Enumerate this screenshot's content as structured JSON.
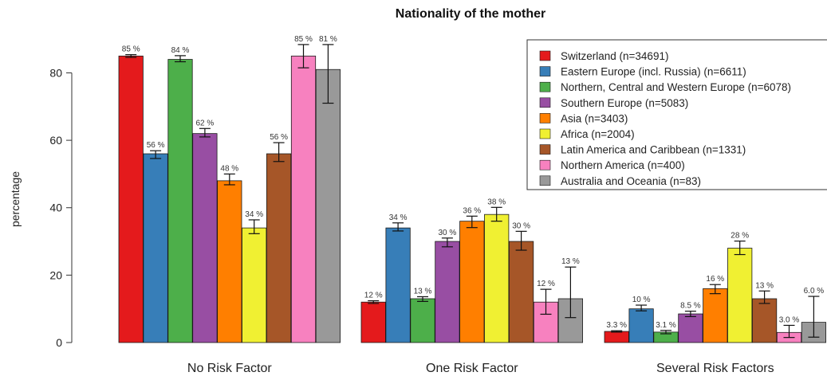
{
  "chart_data": {
    "type": "bar",
    "title": "Nationality of the mother",
    "ylabel": "percentage",
    "xlabel": "",
    "ylim": [
      0,
      95
    ],
    "yticks": [
      0,
      20,
      40,
      60,
      80
    ],
    "categories": [
      "No Risk Factor",
      "One Risk Factor",
      "Several Risk Factors"
    ],
    "legend_position": "top-right",
    "series": [
      {
        "name": "Switzerland (n=34691)",
        "color": "#e41a1c",
        "values": [
          85,
          12,
          3.3
        ],
        "labels": [
          "85 %",
          "12 %",
          "3.3 %"
        ],
        "err_low": [
          84.6,
          11.6,
          3.1
        ],
        "err_high": [
          85.4,
          12.4,
          3.5
        ]
      },
      {
        "name": "Eastern Europe (incl. Russia) (n=6611)",
        "color": "#377eb8",
        "values": [
          56,
          34,
          10
        ],
        "labels": [
          "56 %",
          "34 %",
          "10 %"
        ],
        "err_low": [
          54.6,
          33.1,
          9.4
        ],
        "err_high": [
          56.9,
          35.5,
          11.1
        ]
      },
      {
        "name": "Northern, Central and Western Europe (n=6078)",
        "color": "#4daf4a",
        "values": [
          84,
          13,
          3.1
        ],
        "labels": [
          "84 %",
          "13 %",
          "3.1 %"
        ],
        "err_low": [
          83.3,
          12.2,
          2.6
        ],
        "err_high": [
          85.1,
          13.6,
          3.6
        ]
      },
      {
        "name": "Southern Europe (n=5083)",
        "color": "#984ea3",
        "values": [
          62,
          30,
          8.5
        ],
        "labels": [
          "62 %",
          "30 %",
          "8.5 %"
        ],
        "err_low": [
          61,
          28.4,
          7.7
        ],
        "err_high": [
          63.5,
          31,
          9.3
        ]
      },
      {
        "name": "Asia (n=3403)",
        "color": "#ff7f00",
        "values": [
          48,
          36,
          16
        ],
        "labels": [
          "48 %",
          "36 %",
          "16 %"
        ],
        "err_low": [
          46.8,
          34.1,
          14.5
        ],
        "err_high": [
          50,
          37.5,
          17.2
        ]
      },
      {
        "name": "Africa (n=2004)",
        "color": "#f0f032",
        "values": [
          34,
          38,
          28
        ],
        "labels": [
          "34 %",
          "38 %",
          "28 %"
        ],
        "err_low": [
          32.3,
          36,
          26.1
        ],
        "err_high": [
          36.4,
          40.1,
          30.1
        ]
      },
      {
        "name": "Latin America and Caribbean (n=1331)",
        "color": "#a65628",
        "values": [
          56,
          30,
          13
        ],
        "labels": [
          "56 %",
          "30 %",
          "13 %"
        ],
        "err_low": [
          53.7,
          27.4,
          11.6
        ],
        "err_high": [
          59.3,
          33,
          15.3
        ]
      },
      {
        "name": "Northern America (n=400)",
        "color": "#f781bf",
        "values": [
          85,
          12,
          3.0
        ],
        "labels": [
          "85 %",
          "12 %",
          "3.0 %"
        ],
        "err_low": [
          81.5,
          8.4,
          1.5
        ],
        "err_high": [
          88.4,
          15.8,
          5.1
        ]
      },
      {
        "name": "Australia and Oceania (n=83)",
        "color": "#999999",
        "values": [
          81,
          13,
          6.0
        ],
        "labels": [
          "81 %",
          "13 %",
          "6.0 %"
        ],
        "err_low": [
          71,
          7.4,
          1.6
        ],
        "err_high": [
          88.4,
          22.4,
          13.7
        ]
      }
    ]
  }
}
